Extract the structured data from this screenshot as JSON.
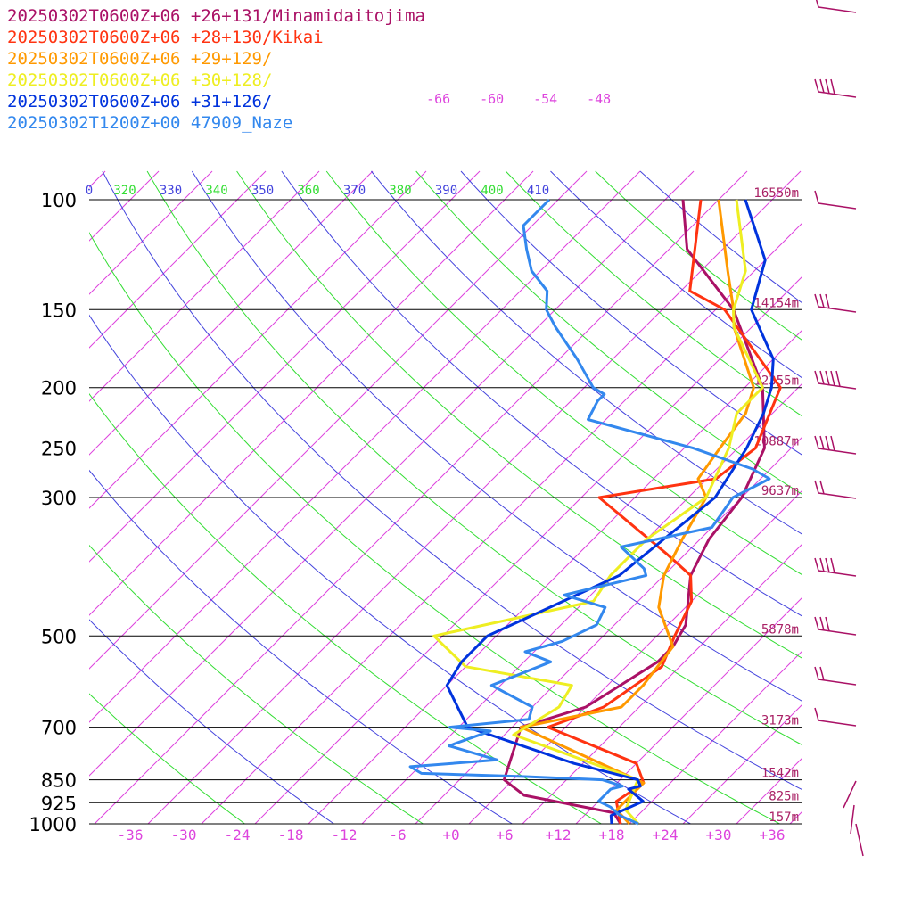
{
  "chart_data": {
    "type": "line",
    "subtype": "skew-T sounding",
    "grid": true,
    "legend_position": "top-left",
    "colors": {
      "isobar": "#000000",
      "isotherm": "#dd44dd",
      "theta_green": "#33dd33",
      "theta_blue": "#4444dd",
      "wind_barb": "#aa1166",
      "height_label": "#aa2266"
    },
    "pressure_levels": [
      100,
      150,
      200,
      250,
      300,
      500,
      700,
      850,
      925,
      1000
    ],
    "pressure_labels": [
      "100",
      "150",
      "200",
      "250",
      "300",
      "500",
      "700",
      "850",
      "925",
      "1000"
    ],
    "x_ticks": [
      -36,
      -30,
      -24,
      -18,
      -12,
      -6,
      0,
      6,
      12,
      18,
      24,
      30,
      36
    ],
    "x_tick_labels": [
      "-36",
      "-30",
      "-24",
      "-18",
      "-12",
      "-6",
      "+0",
      "+6",
      "+12",
      "+18",
      "+24",
      "+30",
      "+36"
    ],
    "upper_isotherm_labels": [
      "-66",
      "-60",
      "-54",
      "-48"
    ],
    "theta_labels": [
      "0",
      "320",
      "330",
      "340",
      "350",
      "360",
      "370",
      "380",
      "390",
      "400",
      "410"
    ],
    "height_labels": [
      {
        "p": 100,
        "text": "16550m"
      },
      {
        "p": 150,
        "text": "14154m"
      },
      {
        "p": 200,
        "text": "12355m"
      },
      {
        "p": 250,
        "text": "10887m"
      },
      {
        "p": 300,
        "text": "9637m"
      },
      {
        "p": 500,
        "text": "5878m"
      },
      {
        "p": 700,
        "text": "3173m"
      },
      {
        "p": 850,
        "text": "1542m"
      },
      {
        "p": 925,
        "text": "825m"
      },
      {
        "p": 1000,
        "text": "157m"
      }
    ],
    "series": [
      {
        "name": "20250302T0600Z+06 +26+131/Minamidaitojima",
        "color": "#aa1166",
        "points": [
          [
            1000,
            19
          ],
          [
            960,
            17
          ],
          [
            900,
            5
          ],
          [
            850,
            1
          ],
          [
            700,
            -3
          ],
          [
            650,
            2
          ],
          [
            550,
            5
          ],
          [
            520,
            5
          ],
          [
            480,
            4
          ],
          [
            400,
            -1
          ],
          [
            350,
            -3
          ],
          [
            300,
            -4
          ],
          [
            250,
            -7
          ],
          [
            200,
            -14
          ],
          [
            150,
            -26
          ],
          [
            120,
            -38
          ],
          [
            100,
            -44
          ]
        ]
      },
      {
        "name": "20250302T0600Z+06 +28+130/Kikai",
        "color": "#ff3311",
        "points": [
          [
            1000,
            19
          ],
          [
            920,
            16
          ],
          [
            860,
            17
          ],
          [
            800,
            14
          ],
          [
            700,
            0
          ],
          [
            650,
            4
          ],
          [
            560,
            6
          ],
          [
            500,
            4
          ],
          [
            440,
            2
          ],
          [
            400,
            -1
          ],
          [
            370,
            -6
          ],
          [
            300,
            -20
          ],
          [
            280,
            -9
          ],
          [
            250,
            -8
          ],
          [
            200,
            -12
          ],
          [
            150,
            -27
          ],
          [
            140,
            -33
          ],
          [
            100,
            -42
          ]
        ]
      },
      {
        "name": "20250302T0600Z+06 +29+129/",
        "color": "#ff9900",
        "points": [
          [
            1000,
            20
          ],
          [
            950,
            17
          ],
          [
            890,
            17
          ],
          [
            860,
            17
          ],
          [
            800,
            10
          ],
          [
            700,
            -3
          ],
          [
            650,
            6
          ],
          [
            600,
            6
          ],
          [
            520,
            5
          ],
          [
            450,
            -1
          ],
          [
            400,
            -4
          ],
          [
            350,
            -6
          ],
          [
            300,
            -8
          ],
          [
            280,
            -11
          ],
          [
            250,
            -12
          ],
          [
            220,
            -13
          ],
          [
            200,
            -15
          ],
          [
            160,
            -24
          ],
          [
            150,
            -26
          ],
          [
            130,
            -31
          ],
          [
            100,
            -40
          ]
        ]
      },
      {
        "name": "20250302T0600Z+06 +30+128/",
        "color": "#eeee22",
        "points": [
          [
            1000,
            21
          ],
          [
            950,
            18
          ],
          [
            850,
            16
          ],
          [
            720,
            -3
          ],
          [
            650,
            -1
          ],
          [
            600,
            -2
          ],
          [
            560,
            -16
          ],
          [
            500,
            -23
          ],
          [
            440,
            -9
          ],
          [
            400,
            -10
          ],
          [
            350,
            -10
          ],
          [
            300,
            -8
          ],
          [
            250,
            -11
          ],
          [
            220,
            -14
          ],
          [
            200,
            -14
          ],
          [
            160,
            -24
          ],
          [
            150,
            -26
          ],
          [
            130,
            -29
          ],
          [
            100,
            -38
          ]
        ]
      },
      {
        "name": "20250302T0600Z+06 +31+126/",
        "color": "#0033dd",
        "points": [
          [
            1000,
            18
          ],
          [
            970,
            17
          ],
          [
            920,
            19
          ],
          [
            880,
            16
          ],
          [
            870,
            17
          ],
          [
            850,
            16
          ],
          [
            800,
            7
          ],
          [
            700,
            -9
          ],
          [
            600,
            -16
          ],
          [
            550,
            -17
          ],
          [
            500,
            -17
          ],
          [
            400,
            -9
          ],
          [
            300,
            -7
          ],
          [
            250,
            -9
          ],
          [
            220,
            -11
          ],
          [
            200,
            -13
          ],
          [
            180,
            -16
          ],
          [
            150,
            -24
          ],
          [
            125,
            -28
          ],
          [
            100,
            -37
          ]
        ]
      },
      {
        "name": "20250302T1200Z+00 47909_Naze",
        "color": "#3388ee",
        "points": [
          [
            1000,
            21
          ],
          [
            970,
            18
          ],
          [
            940,
            16
          ],
          [
            920,
            14
          ],
          [
            900,
            14
          ],
          [
            880,
            14
          ],
          [
            870,
            15
          ],
          [
            850,
            12
          ],
          [
            840,
            3
          ],
          [
            830,
            -9
          ],
          [
            810,
            -11
          ],
          [
            790,
            -2
          ],
          [
            750,
            -9
          ],
          [
            710,
            -6
          ],
          [
            700,
            -11
          ],
          [
            680,
            -3
          ],
          [
            650,
            -4
          ],
          [
            600,
            -11
          ],
          [
            550,
            -7
          ],
          [
            530,
            -11
          ],
          [
            510,
            -8
          ],
          [
            480,
            -6
          ],
          [
            450,
            -7
          ],
          [
            430,
            -13
          ],
          [
            400,
            -6
          ],
          [
            390,
            -7
          ],
          [
            360,
            -12
          ],
          [
            335,
            -4
          ],
          [
            300,
            -5
          ],
          [
            280,
            -3
          ],
          [
            270,
            -6
          ],
          [
            250,
            -15
          ],
          [
            225,
            -30
          ],
          [
            210,
            -31
          ],
          [
            205,
            -31
          ],
          [
            200,
            -33
          ],
          [
            180,
            -38
          ],
          [
            160,
            -44
          ],
          [
            150,
            -47
          ],
          [
            140,
            -49
          ],
          [
            130,
            -53
          ],
          [
            120,
            -56
          ],
          [
            110,
            -59
          ],
          [
            100,
            -59
          ]
        ]
      }
    ]
  }
}
